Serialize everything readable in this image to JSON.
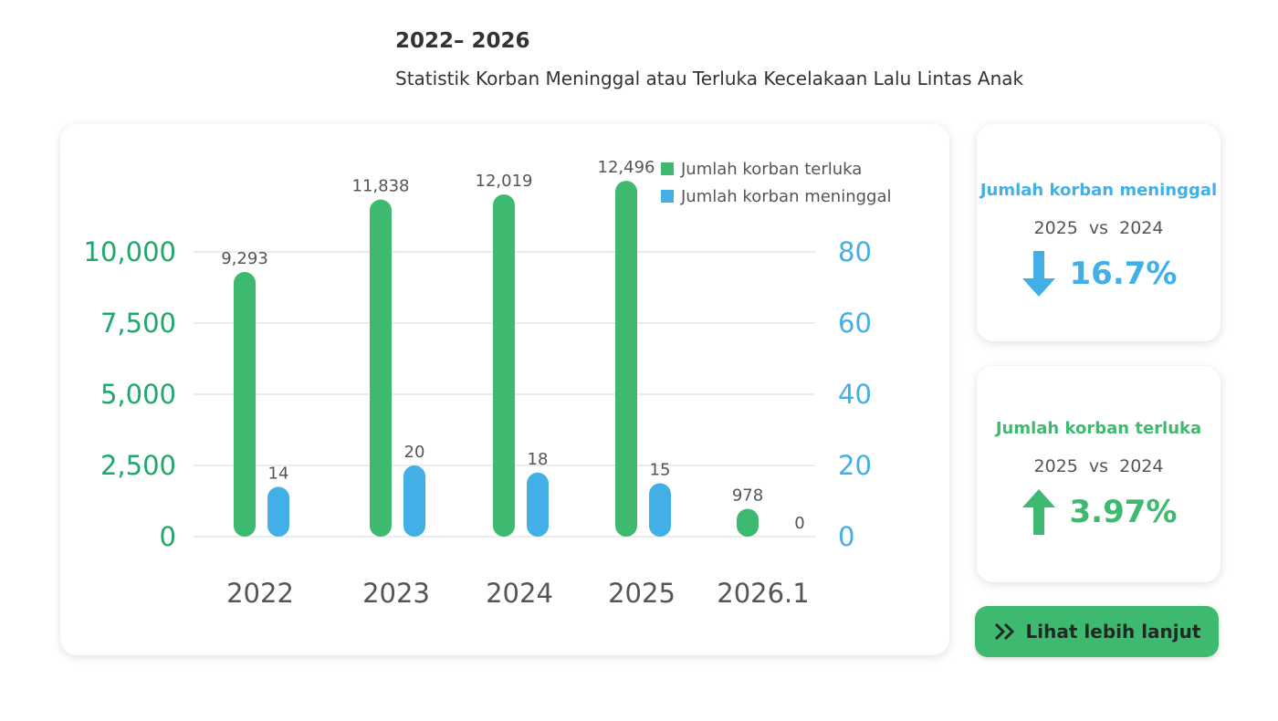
{
  "header": {
    "title": "2022– 2026",
    "subtitle": "Statistik Korban Meninggal atau Terluka Kecelakaan Lalu Lintas Anak"
  },
  "chart_data": {
    "type": "bar",
    "categories": [
      "2022",
      "2023",
      "2024",
      "2025",
      "2026.1"
    ],
    "series": [
      {
        "name": "Jumlah korban terluka",
        "color": "#3dba6f",
        "values": [
          9293,
          11838,
          12019,
          12496,
          978
        ],
        "value_labels": [
          "9,293",
          "11,838",
          "12,019",
          "12,496",
          "978"
        ]
      },
      {
        "name": "Jumlah korban meninggal",
        "color": "#42b0e6",
        "axis": "y2",
        "values": [
          14,
          20,
          18,
          15,
          0
        ]
      }
    ],
    "ylim": [
      0,
      12500
    ],
    "yticks": [
      0,
      {
        "value": 2500,
        "label": "2,500"
      },
      {
        "value": 5000,
        "label": "5,000"
      },
      {
        "value": 7500,
        "label": "7,500"
      },
      {
        "value": 10000,
        "label": "10,000"
      }
    ],
    "y2lim": [
      0,
      100
    ],
    "y2ticks": [
      0,
      20,
      40,
      60,
      80
    ],
    "grid": true
  },
  "cards": [
    {
      "title": "Jumlah korban meninggal",
      "comparison": "2025 vs 2024",
      "change": "16.7%"
    },
    {
      "title": "Jumlah korban terluka",
      "comparison": "2025 vs 2024",
      "change": "3.97%"
    }
  ],
  "button": {
    "label": "Lihat lebih lanjut"
  }
}
